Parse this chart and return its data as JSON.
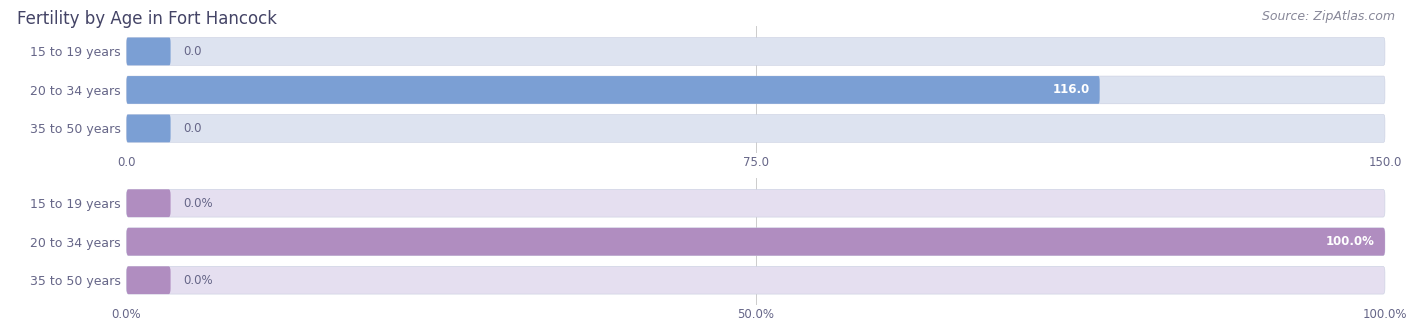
{
  "title": "Fertility by Age in Fort Hancock",
  "source": "Source: ZipAtlas.com",
  "top_chart": {
    "categories": [
      "15 to 19 years",
      "20 to 34 years",
      "35 to 50 years"
    ],
    "values": [
      0.0,
      116.0,
      0.0
    ],
    "bar_color": "#7B9FD4",
    "bar_bg_color": "#DDE3F0",
    "xlim": [
      0,
      150
    ],
    "xticks": [
      0.0,
      75.0,
      150.0
    ],
    "xtick_labels": [
      "0.0",
      "75.0",
      "150.0"
    ],
    "value_labels": [
      "0.0",
      "116.0",
      "0.0"
    ]
  },
  "bottom_chart": {
    "categories": [
      "15 to 19 years",
      "20 to 34 years",
      "35 to 50 years"
    ],
    "values": [
      0.0,
      100.0,
      0.0
    ],
    "bar_color": "#B08DC0",
    "bar_bg_color": "#E5DFF0",
    "xlim": [
      0,
      100
    ],
    "xticks": [
      0.0,
      50.0,
      100.0
    ],
    "xtick_labels": [
      "0.0%",
      "50.0%",
      "100.0%"
    ],
    "value_labels": [
      "0.0%",
      "100.0%",
      "0.0%"
    ]
  },
  "label_color": "#666688",
  "title_color": "#444466",
  "source_color": "#888899",
  "title_fontsize": 12,
  "label_fontsize": 9,
  "value_fontsize": 8.5,
  "tick_fontsize": 8.5,
  "source_fontsize": 9
}
